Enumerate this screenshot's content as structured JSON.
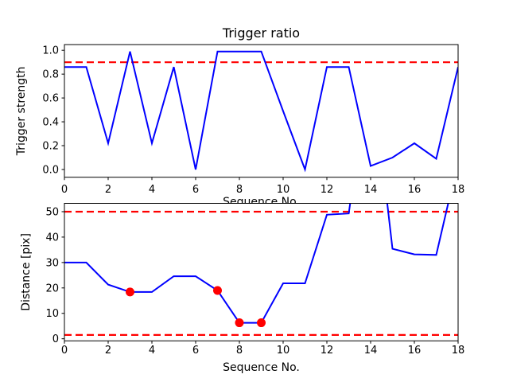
{
  "figure": {
    "background": "#ffffff",
    "text_color": "#000000",
    "line_color": "#0000ff",
    "threshold_color": "#ff0000",
    "marker_color": "#ff0000"
  },
  "chart_data": [
    {
      "type": "line",
      "title": "Trigger ratio",
      "xlabel": "Sequence No.",
      "ylabel": "Trigger strength",
      "x": [
        0,
        1,
        2,
        3,
        4,
        5,
        6,
        7,
        8,
        9,
        10,
        11,
        12,
        13,
        14,
        15,
        16,
        17,
        18
      ],
      "y": [
        0.86,
        0.86,
        0.22,
        0.99,
        0.22,
        0.86,
        0.0,
        0.99,
        0.99,
        0.99,
        0.49,
        0.0,
        0.86,
        0.86,
        0.03,
        0.1,
        0.22,
        0.09,
        0.86
      ],
      "xlim": [
        0,
        18
      ],
      "ylim": [
        -0.065,
        1.048
      ],
      "xticks": {
        "values": [
          0,
          2,
          4,
          6,
          8,
          10,
          12,
          14,
          16,
          18
        ],
        "labels": [
          "0",
          "2",
          "4",
          "6",
          "8",
          "10",
          "12",
          "14",
          "16",
          "18"
        ]
      },
      "yticks": {
        "values": [
          0.0,
          0.2,
          0.4,
          0.6,
          0.8,
          1.0
        ],
        "labels": [
          "0.0",
          "0.2",
          "0.4",
          "0.6",
          "0.8",
          "1.0"
        ]
      },
      "grid": false,
      "legend": null,
      "series_color": "#0000ff",
      "line_style": "solid",
      "thresholds": [
        {
          "value": 0.9,
          "color": "#ff0000",
          "style": "dashed"
        }
      ],
      "markers": []
    },
    {
      "type": "line",
      "title": "",
      "xlabel": "Sequence No.",
      "ylabel": "Distance [pix]",
      "x": [
        0,
        1,
        2,
        3,
        4,
        5,
        6,
        7,
        8,
        9,
        10,
        11,
        12,
        13,
        14,
        15,
        16,
        17,
        18
      ],
      "y": [
        30,
        30,
        21.3,
        18.4,
        18.4,
        24.6,
        24.6,
        19,
        6.3,
        6.3,
        21.8,
        21.8,
        48.8,
        49.3,
        110,
        35.4,
        33.2,
        33,
        70
      ],
      "xlim": [
        0,
        18
      ],
      "ylim": [
        -0.82,
        53.28
      ],
      "xticks": {
        "values": [
          0,
          2,
          4,
          6,
          8,
          10,
          12,
          14,
          16,
          18
        ],
        "labels": [
          "0",
          "2",
          "4",
          "6",
          "8",
          "10",
          "12",
          "14",
          "16",
          "18"
        ]
      },
      "yticks": {
        "values": [
          0,
          10,
          20,
          30,
          40,
          50
        ],
        "labels": [
          "0",
          "10",
          "20",
          "30",
          "40",
          "50"
        ]
      },
      "grid": false,
      "legend": null,
      "series_color": "#0000ff",
      "line_style": "solid",
      "thresholds": [
        {
          "value": 50,
          "color": "#ff0000",
          "style": "dashed"
        },
        {
          "value": 1.5,
          "color": "#ff0000",
          "style": "dashed"
        }
      ],
      "markers": [
        {
          "x": 3,
          "y": 18.4
        },
        {
          "x": 7,
          "y": 19
        },
        {
          "x": 8,
          "y": 6.3
        },
        {
          "x": 9,
          "y": 6.3
        }
      ]
    }
  ]
}
